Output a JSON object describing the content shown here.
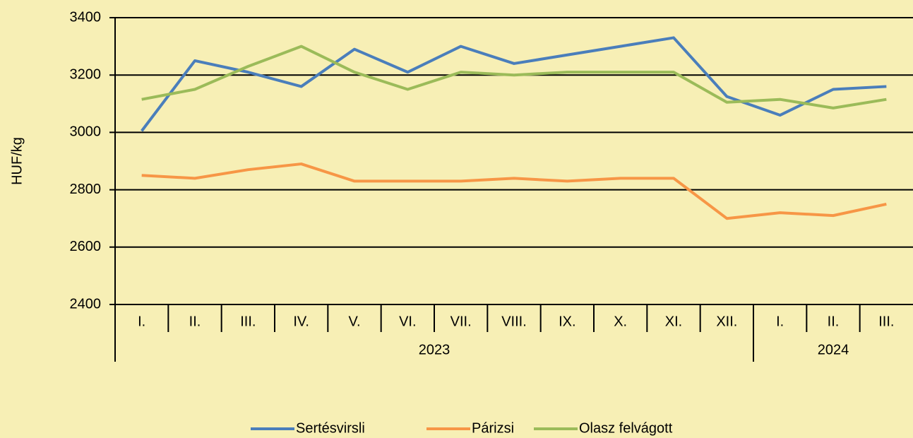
{
  "chart_data": {
    "type": "line",
    "y_label": "HUF/kg",
    "category_groups": [
      {
        "label": "2023",
        "categories": [
          "I.",
          "II.",
          "III.",
          "IV.",
          "V.",
          "VI.",
          "VII.",
          "VIII.",
          "IX.",
          "X.",
          "XI.",
          "XII."
        ]
      },
      {
        "label": "2024",
        "categories": [
          "I.",
          "II.",
          "III."
        ]
      }
    ],
    "series": [
      {
        "name": "Sertésvirsli",
        "color": "#4a7ebb",
        "values": [
          3005,
          3250,
          3210,
          3160,
          3290,
          3210,
          3300,
          3240,
          3270,
          3300,
          3330,
          3125,
          3060,
          3150,
          3160
        ]
      },
      {
        "name": "Párizsi",
        "color": "#f79646",
        "values": [
          2850,
          2840,
          2870,
          2890,
          2830,
          2830,
          2830,
          2840,
          2830,
          2840,
          2840,
          2700,
          2720,
          2710,
          2750
        ]
      },
      {
        "name": "Olasz felvágott",
        "color": "#9bbb59",
        "values": [
          3115,
          3150,
          3230,
          3300,
          3210,
          3150,
          3210,
          3200,
          3210,
          3210,
          3210,
          3105,
          3115,
          3085,
          3115
        ]
      }
    ],
    "ylim": [
      2400,
      3400
    ],
    "yticks": [
      2400,
      2600,
      2800,
      3000,
      3200,
      3400
    ],
    "grid": true,
    "legend": "bottom"
  }
}
